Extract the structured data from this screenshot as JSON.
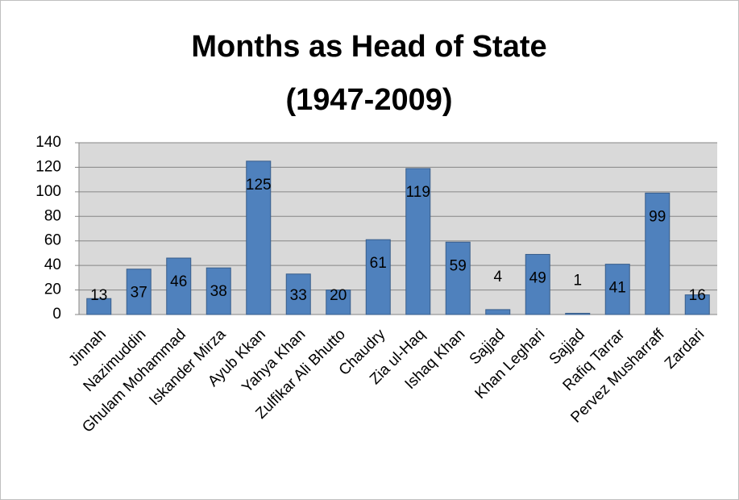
{
  "chart_data": {
    "type": "bar",
    "title": "Months as Head of State",
    "subtitle": "(1947-2009)",
    "categories": [
      "Jinnah",
      "Nazimuddin",
      "Ghulam Mohammad",
      "Iskander Mirza",
      "Ayub Kkan",
      "Yahya Khan",
      "Zulfikar Ali Bhutto",
      "Chaudry",
      "Zia ul-Haq",
      "Ishaq Khan",
      "Sajjad",
      "Khan Leghari",
      "Sajjad",
      "Rafiq Tarrar",
      "Pervez Musharraff",
      "Zardari"
    ],
    "values": [
      13,
      37,
      46,
      38,
      125,
      33,
      20,
      61,
      119,
      59,
      4,
      49,
      1,
      41,
      99,
      16
    ],
    "color": "#4f81bd",
    "ylim": [
      0,
      140
    ],
    "yticks": [
      0,
      20,
      40,
      60,
      80,
      100,
      120,
      140
    ],
    "grid": true
  }
}
